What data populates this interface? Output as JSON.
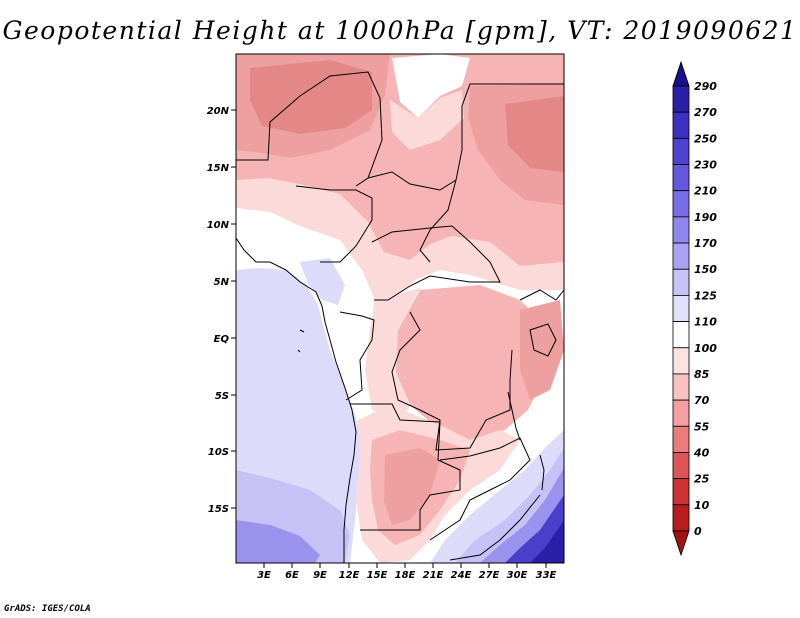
{
  "title": "Geopotential Height at 1000hPa [gpm], VT: 2019090621",
  "credit": "GrADS: IGES/COLA",
  "map": {
    "lat_labels": [
      "20N",
      "15N",
      "10N",
      "5N",
      "EQ",
      "5S",
      "10S",
      "15S"
    ],
    "lon_labels": [
      "3E",
      "6E",
      "9E",
      "12E",
      "15E",
      "18E",
      "21E",
      "24E",
      "27E",
      "30E",
      "33E"
    ]
  },
  "colorbar": {
    "labels": [
      "290",
      "270",
      "250",
      "230",
      "210",
      "190",
      "170",
      "150",
      "125",
      "110",
      "100",
      "85",
      "70",
      "55",
      "40",
      "25",
      "10",
      "0"
    ],
    "colors": [
      "#1a0f8c",
      "#2a20a8",
      "#3b30bf",
      "#4d43d0",
      "#6358de",
      "#786ee6",
      "#8f86ee",
      "#aaa3f3",
      "#c7c3f8",
      "#e2e1fb",
      "#ffffff",
      "#fde2e2",
      "#f9c2c2",
      "#f3a0a0",
      "#ea7c7c",
      "#dd5555",
      "#cc3333",
      "#b81d1d",
      "#a31212"
    ]
  },
  "field_colors": {
    "ocean": "#dcdcfa",
    "neutral": "#ffffff",
    "light_pink": "#fcdada",
    "pink": "#f6b4b4",
    "salmon": "#eea0a0",
    "dark_salmon": "#e38787",
    "light_blue": "#c6c2f6",
    "blue": "#9b92ee",
    "dark_blue": "#4a3ecb",
    "navy": "#2a1fa5"
  }
}
